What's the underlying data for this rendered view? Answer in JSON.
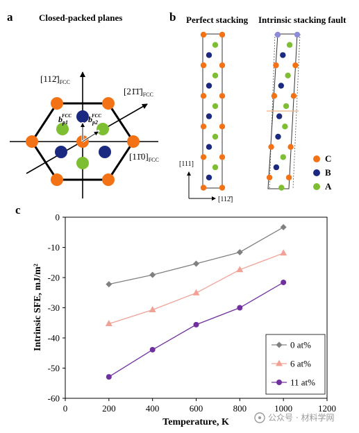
{
  "panel_a": {
    "letter": "a",
    "title": "Closed-packed planes",
    "dir_112": "[112̄]",
    "dir_112_sub": "FCC",
    "dir_211": "[21̄1̄]",
    "dir_211_sub": "FCC",
    "dir_110": "[11̄0]",
    "dir_110_sub": "FCC",
    "bp1": "b",
    "bp1_sub": "p1",
    "bp1_sup": "FCC",
    "bp2": "b",
    "bp2_sub": "p2",
    "bp2_sup": "FCC"
  },
  "panel_b": {
    "letter": "b",
    "title_perfect": "Perfect stacking",
    "title_fault": "Intrinsic stacking fault",
    "axis_111": "[111]",
    "axis_112": "[112̄]",
    "legend": [
      {
        "label": "C",
        "color": "#F47216"
      },
      {
        "label": "B",
        "color": "#1B2A80"
      },
      {
        "label": "A",
        "color": "#7DBE32"
      }
    ]
  },
  "panel_c": {
    "letter": "c"
  },
  "chart_data": {
    "type": "line",
    "title": "",
    "xlabel": "Temperature, K",
    "ylabel": "Intrinsic SFE, mJ/m²",
    "xlim": [
      0,
      1200
    ],
    "ylim": [
      -60,
      0
    ],
    "xticks": [
      0,
      200,
      400,
      600,
      800,
      1000,
      1200
    ],
    "yticks": [
      0,
      -10,
      -20,
      -30,
      -40,
      -50,
      -60
    ],
    "grid": false,
    "legend_position": "bottom-right",
    "series": [
      {
        "name": "0 at%",
        "color": "#808080",
        "marker": "diamond",
        "x": [
          200,
          400,
          600,
          800,
          1000
        ],
        "y": [
          -22.2,
          -19.1,
          -15.4,
          -11.6,
          -3.3
        ]
      },
      {
        "name": "6 at%",
        "color": "#F2A195",
        "marker": "triangle",
        "x": [
          200,
          400,
          600,
          800,
          1000
        ],
        "y": [
          -35.3,
          -30.7,
          -25.1,
          -17.4,
          -11.9
        ]
      },
      {
        "name": "11 at%",
        "color": "#7030A0",
        "marker": "circle",
        "x": [
          200,
          400,
          600,
          800,
          1000
        ],
        "y": [
          -52.9,
          -43.9,
          -35.6,
          -30.0,
          -21.6
        ]
      }
    ]
  },
  "watermark": {
    "text": "公众号 · 材料学网"
  }
}
